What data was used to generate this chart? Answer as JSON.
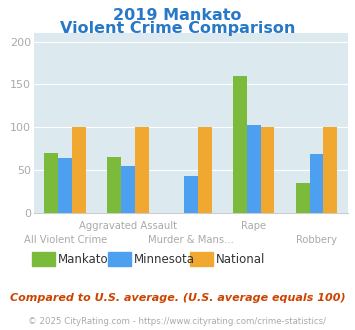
{
  "title_line1": "2019 Mankato",
  "title_line2": "Violent Crime Comparison",
  "title_color": "#2878c8",
  "categories": [
    "All Violent Crime",
    "Aggravated Assault",
    "Murder & Mans...",
    "Rape",
    "Robbery"
  ],
  "top_labels": [
    "",
    "Aggravated Assault",
    "",
    "Rape",
    ""
  ],
  "bot_labels": [
    "All Violent Crime",
    "",
    "Murder & Mans...",
    "",
    "Robbery"
  ],
  "series": {
    "Mankato": [
      70,
      65,
      0,
      160,
      35
    ],
    "Minnesota": [
      64,
      55,
      43,
      102,
      69
    ],
    "National": [
      100,
      100,
      100,
      100,
      100
    ]
  },
  "colors": {
    "Mankato": "#7cba3c",
    "Minnesota": "#4da0f0",
    "National": "#f0a830"
  },
  "ylim": [
    0,
    210
  ],
  "yticks": [
    0,
    50,
    100,
    150,
    200
  ],
  "plot_bg": "#dceaf0",
  "footnote": "Compared to U.S. average. (U.S. average equals 100)",
  "footnote_color": "#cc4400",
  "copyright": "© 2025 CityRating.com - https://www.cityrating.com/crime-statistics/",
  "copyright_color": "#aaaaaa",
  "bar_width": 0.22,
  "x_label_fontsize": 7.2,
  "tick_label_color": "#aaaaaa",
  "legend_text_color": "#333333",
  "grid_color": "#ffffff",
  "spine_color": "#cccccc"
}
